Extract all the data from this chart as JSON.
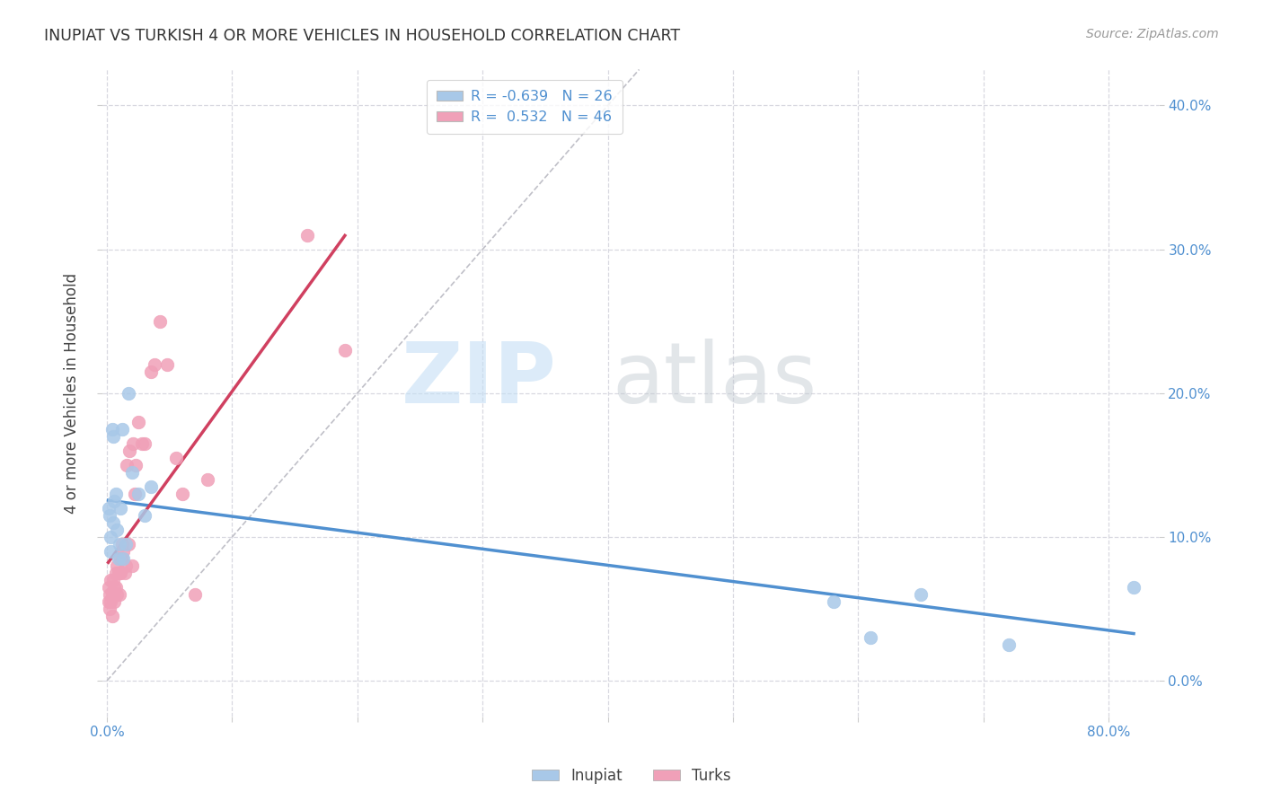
{
  "title": "INUPIAT VS TURKISH 4 OR MORE VEHICLES IN HOUSEHOLD CORRELATION CHART",
  "source": "Source: ZipAtlas.com",
  "ylabel": "4 or more Vehicles in Household",
  "inupiat_color": "#a8c8e8",
  "turks_color": "#f0a0b8",
  "inupiat_line_color": "#5090d0",
  "turks_line_color": "#d04060",
  "diagonal_color": "#c0c0c8",
  "background": "#ffffff",
  "grid_color": "#d8d8e0",
  "xlim": [
    -0.004,
    0.84
  ],
  "ylim": [
    -0.025,
    0.425
  ],
  "xticks": [
    0.0,
    0.1,
    0.2,
    0.3,
    0.4,
    0.5,
    0.6,
    0.7,
    0.8
  ],
  "yticks": [
    0.0,
    0.1,
    0.2,
    0.3,
    0.4
  ],
  "inupiat_R": -0.639,
  "inupiat_N": 26,
  "turks_R": 0.532,
  "turks_N": 46,
  "inupiat_x": [
    0.001,
    0.002,
    0.003,
    0.003,
    0.004,
    0.005,
    0.005,
    0.006,
    0.007,
    0.008,
    0.009,
    0.01,
    0.011,
    0.012,
    0.013,
    0.015,
    0.017,
    0.02,
    0.025,
    0.03,
    0.035,
    0.58,
    0.61,
    0.65,
    0.72,
    0.82
  ],
  "inupiat_y": [
    0.12,
    0.115,
    0.1,
    0.09,
    0.175,
    0.17,
    0.11,
    0.125,
    0.13,
    0.105,
    0.085,
    0.095,
    0.12,
    0.175,
    0.085,
    0.095,
    0.2,
    0.145,
    0.13,
    0.115,
    0.135,
    0.055,
    0.03,
    0.06,
    0.025,
    0.065
  ],
  "turks_x": [
    0.001,
    0.001,
    0.002,
    0.002,
    0.003,
    0.003,
    0.004,
    0.004,
    0.005,
    0.005,
    0.006,
    0.006,
    0.007,
    0.007,
    0.008,
    0.008,
    0.009,
    0.01,
    0.01,
    0.011,
    0.011,
    0.012,
    0.012,
    0.013,
    0.014,
    0.015,
    0.016,
    0.017,
    0.018,
    0.02,
    0.021,
    0.022,
    0.023,
    0.025,
    0.028,
    0.03,
    0.035,
    0.038,
    0.042,
    0.048,
    0.055,
    0.06,
    0.07,
    0.08,
    0.16,
    0.19
  ],
  "turks_y": [
    0.065,
    0.055,
    0.06,
    0.05,
    0.07,
    0.055,
    0.06,
    0.045,
    0.07,
    0.06,
    0.065,
    0.055,
    0.065,
    0.075,
    0.06,
    0.08,
    0.075,
    0.075,
    0.06,
    0.085,
    0.075,
    0.095,
    0.085,
    0.09,
    0.075,
    0.08,
    0.15,
    0.095,
    0.16,
    0.08,
    0.165,
    0.13,
    0.15,
    0.18,
    0.165,
    0.165,
    0.215,
    0.22,
    0.25,
    0.22,
    0.155,
    0.13,
    0.06,
    0.14,
    0.31,
    0.23
  ]
}
